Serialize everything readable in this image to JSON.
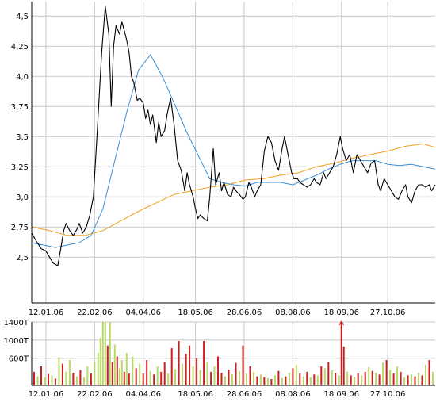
{
  "chart_data": [
    {
      "type": "line",
      "title": "",
      "xlabel": "",
      "ylabel": "",
      "ylim": [
        2.12,
        4.62
      ],
      "grid": true,
      "y_ticks": [
        "4,5",
        "4,25",
        "4,0",
        "3,75",
        "3,5",
        "3,25",
        "3,0",
        "2,75",
        "2,5"
      ],
      "y_tick_values": [
        4.5,
        4.25,
        4.0,
        3.75,
        3.5,
        3.25,
        3.0,
        2.75,
        2.5
      ],
      "x_ticks": [
        "12.01.06",
        "22.02.06",
        "04.04.06",
        "18.05.06",
        "28.06.06",
        "08.08.06",
        "18.09.06",
        "27.10.06"
      ],
      "x_tick_days": [
        12,
        53,
        94,
        138,
        179,
        220,
        261,
        300
      ],
      "x_range_days": [
        0,
        340
      ],
      "series": [
        {
          "color": "#000000",
          "x": [
            0,
            4,
            8,
            12,
            15,
            18,
            22,
            25,
            27,
            29,
            32,
            35,
            38,
            40,
            43,
            46,
            49,
            52,
            55,
            57,
            59,
            62,
            65,
            67,
            69,
            71,
            74,
            76,
            78,
            80,
            82,
            84,
            86,
            89,
            91,
            94,
            96,
            98,
            100,
            102,
            105,
            107,
            109,
            112,
            114,
            117,
            120,
            123,
            126,
            129,
            131,
            133,
            136,
            138,
            140,
            142,
            145,
            148,
            150,
            153,
            155,
            158,
            160,
            162,
            165,
            168,
            170,
            172,
            175,
            178,
            180,
            183,
            185,
            188,
            190,
            193,
            196,
            199,
            202,
            205,
            208,
            211,
            213,
            216,
            219,
            221,
            224,
            226,
            229,
            232,
            235,
            238,
            240,
            243,
            246,
            248,
            251,
            254,
            257,
            260,
            262,
            265,
            268,
            271,
            274,
            277,
            280,
            283,
            286,
            289,
            292,
            294,
            297,
            300,
            303,
            306,
            309,
            312,
            315,
            317,
            320,
            323,
            326,
            329,
            332,
            335,
            337,
            340
          ],
          "values": [
            2.7,
            2.63,
            2.57,
            2.55,
            2.5,
            2.45,
            2.43,
            2.6,
            2.72,
            2.78,
            2.72,
            2.68,
            2.73,
            2.78,
            2.7,
            2.75,
            2.85,
            3.0,
            3.5,
            3.85,
            4.2,
            4.58,
            4.35,
            3.75,
            4.25,
            4.42,
            4.35,
            4.45,
            4.38,
            4.3,
            4.2,
            4.0,
            3.95,
            3.8,
            3.82,
            3.78,
            3.65,
            3.72,
            3.6,
            3.68,
            3.45,
            3.62,
            3.5,
            3.55,
            3.68,
            3.82,
            3.6,
            3.3,
            3.22,
            3.05,
            3.2,
            3.1,
            3.0,
            2.9,
            2.82,
            2.85,
            2.82,
            2.8,
            3.0,
            3.4,
            3.1,
            3.2,
            3.05,
            3.12,
            3.02,
            3.0,
            3.08,
            3.05,
            3.02,
            2.98,
            3.0,
            3.12,
            3.08,
            3.0,
            3.05,
            3.1,
            3.38,
            3.5,
            3.45,
            3.3,
            3.22,
            3.4,
            3.5,
            3.35,
            3.2,
            3.15,
            3.15,
            3.12,
            3.1,
            3.08,
            3.1,
            3.15,
            3.12,
            3.1,
            3.2,
            3.15,
            3.2,
            3.25,
            3.35,
            3.5,
            3.4,
            3.3,
            3.35,
            3.2,
            3.35,
            3.3,
            3.25,
            3.2,
            3.28,
            3.3,
            3.1,
            3.05,
            3.15,
            3.1,
            3.05,
            3.0,
            2.98,
            3.05,
            3.1,
            3.0,
            2.95,
            3.05,
            3.1,
            3.1,
            3.08,
            3.1,
            3.05,
            3.1
          ]
        },
        {
          "color": "#3c8fd8",
          "x": [
            0,
            10,
            20,
            30,
            40,
            50,
            60,
            70,
            80,
            90,
            100,
            110,
            120,
            130,
            140,
            150,
            160,
            170,
            180,
            190,
            200,
            210,
            220,
            230,
            240,
            250,
            260,
            270,
            280,
            290,
            300,
            310,
            320,
            330,
            340
          ],
          "values": [
            2.62,
            2.6,
            2.58,
            2.6,
            2.62,
            2.68,
            2.9,
            3.3,
            3.7,
            4.05,
            4.18,
            4.0,
            3.78,
            3.55,
            3.35,
            3.15,
            3.12,
            3.1,
            3.09,
            3.12,
            3.12,
            3.12,
            3.1,
            3.14,
            3.18,
            3.23,
            3.27,
            3.3,
            3.3,
            3.3,
            3.27,
            3.26,
            3.27,
            3.25,
            3.23
          ]
        },
        {
          "color": "#f0a020",
          "x": [
            0,
            15,
            30,
            45,
            60,
            75,
            90,
            105,
            120,
            135,
            150,
            165,
            180,
            195,
            210,
            225,
            240,
            255,
            270,
            285,
            300,
            315,
            330,
            340
          ],
          "values": [
            2.75,
            2.72,
            2.68,
            2.68,
            2.72,
            2.8,
            2.88,
            2.95,
            3.02,
            3.05,
            3.08,
            3.1,
            3.14,
            3.15,
            3.18,
            3.2,
            3.25,
            3.28,
            3.32,
            3.35,
            3.38,
            3.42,
            3.44,
            3.41
          ]
        }
      ]
    },
    {
      "type": "bar",
      "title": "",
      "xlabel": "",
      "ylabel": "",
      "ylim": [
        0,
        1400
      ],
      "grid": true,
      "y_ticks": [
        "1400T",
        "1000T",
        "600T"
      ],
      "y_tick_values": [
        1400,
        1000,
        600
      ],
      "x_ticks": [
        "12.01.06",
        "22.02.06",
        "04.04.06",
        "18.05.06",
        "28.06.06",
        "08.08.06",
        "18.09.06",
        "27.10.06"
      ],
      "x_tick_days": [
        12,
        53,
        94,
        138,
        179,
        220,
        261,
        300
      ],
      "x_range_days": [
        0,
        340
      ],
      "up_color": "#b8d86a",
      "down_color": "#cc1f1f",
      "series": [
        {
          "name": "",
          "x": [
            2,
            5,
            8,
            11,
            14,
            17,
            20,
            23,
            26,
            29,
            32,
            35,
            38,
            41,
            44,
            47,
            50,
            53,
            56,
            58,
            60,
            62,
            64,
            66,
            68,
            70,
            72,
            74,
            76,
            78,
            80,
            82,
            85,
            88,
            91,
            94,
            97,
            100,
            103,
            106,
            109,
            112,
            115,
            118,
            121,
            124,
            127,
            130,
            133,
            136,
            139,
            142,
            145,
            148,
            151,
            154,
            157,
            160,
            163,
            166,
            169,
            172,
            175,
            178,
            181,
            184,
            187,
            190,
            193,
            196,
            199,
            202,
            205,
            208,
            211,
            214,
            217,
            220,
            223,
            226,
            229,
            232,
            235,
            238,
            241,
            244,
            247,
            250,
            253,
            256,
            259,
            261,
            263,
            266,
            269,
            272,
            275,
            278,
            281,
            284,
            287,
            290,
            293,
            296,
            299,
            302,
            305,
            308,
            311,
            314,
            317,
            320,
            323,
            326,
            329,
            332,
            335,
            338
          ],
          "values": [
            300,
            200,
            420,
            180,
            250,
            220,
            150,
            620,
            480,
            300,
            560,
            280,
            200,
            340,
            180,
            420,
            260,
            520,
            720,
            1050,
            1400,
            1400,
            880,
            1400,
            520,
            900,
            640,
            380,
            560,
            300,
            720,
            260,
            640,
            380,
            480,
            260,
            560,
            320,
            240,
            420,
            300,
            520,
            260,
            820,
            360,
            980,
            480,
            700,
            880,
            420,
            600,
            340,
            980,
            520,
            300,
            420,
            640,
            280,
            200,
            350,
            240,
            500,
            320,
            880,
            260,
            420,
            300,
            200,
            240,
            180,
            160,
            140,
            220,
            320,
            160,
            200,
            280,
            380,
            460,
            260,
            200,
            300,
            180,
            240,
            220,
            420,
            380,
            520,
            340,
            280,
            220,
            1400,
            860,
            300,
            220,
            180,
            260,
            220,
            300,
            400,
            320,
            280,
            240,
            500,
            560,
            340,
            260,
            420,
            300,
            180,
            220,
            240,
            200,
            280,
            220,
            460,
            560,
            300
          ],
          "direction": [
            "d",
            "u",
            "d",
            "u",
            "d",
            "u",
            "d",
            "u",
            "d",
            "u",
            "u",
            "d",
            "u",
            "d",
            "u",
            "u",
            "d",
            "u",
            "u",
            "u",
            "u",
            "u",
            "d",
            "u",
            "d",
            "u",
            "d",
            "u",
            "u",
            "d",
            "u",
            "d",
            "u",
            "d",
            "u",
            "d",
            "d",
            "u",
            "d",
            "u",
            "d",
            "d",
            "u",
            "d",
            "u",
            "d",
            "u",
            "d",
            "d",
            "u",
            "d",
            "u",
            "d",
            "u",
            "d",
            "u",
            "d",
            "d",
            "u",
            "d",
            "u",
            "d",
            "u",
            "d",
            "u",
            "d",
            "u",
            "d",
            "u",
            "d",
            "u",
            "d",
            "u",
            "d",
            "u",
            "d",
            "u",
            "d",
            "u",
            "d",
            "u",
            "d",
            "u",
            "d",
            "u",
            "d",
            "u",
            "d",
            "u",
            "d",
            "u",
            "d",
            "d",
            "u",
            "d",
            "u",
            "d",
            "u",
            "d",
            "u",
            "d",
            "u",
            "d",
            "u",
            "d",
            "u",
            "d",
            "u",
            "d",
            "u",
            "d",
            "u",
            "d",
            "u",
            "d",
            "u",
            "d",
            "u"
          ]
        }
      ]
    }
  ]
}
